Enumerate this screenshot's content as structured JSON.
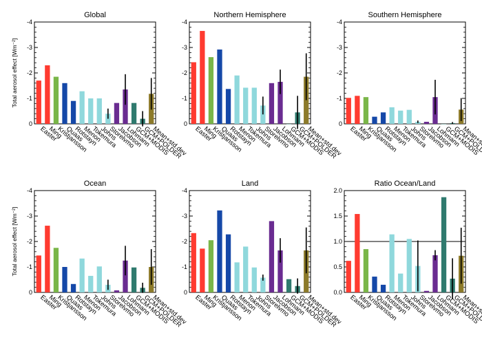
{
  "ylabel": "Total aerosol effect [Wm⁻²]",
  "colors": {
    "Easter": "#ff3b30",
    "Ming": "#ff3b30",
    "Kristjansson": "#7ab648",
    "Quaas": "#1548a8",
    "Rotstayn": "#1548a8",
    "Menon": "#8fd8dc",
    "Tokemura": "#8fd8dc",
    "Johns": "#8fd8dc",
    "Storelvmo": "#8fd8dc",
    "Jacobson": "#6a2c91",
    "Lohmann": "#6a2c91",
    "GCM+MODIS": "#2f7a6e",
    "GCM+POLDER": "#2f7a6e",
    "Mean+std.dev": "#8c7a2a",
    "errorbar": "#000000",
    "reference_line": "#000000"
  },
  "chart_data": [
    {
      "id": "global",
      "type": "bar",
      "title": "Global",
      "ylabel": "Total aerosol effect [Wm⁻²]",
      "ylim": [
        0,
        -4
      ],
      "yticks": [
        "0",
        "-1",
        "-2",
        "-3",
        "-4"
      ],
      "categories": [
        "Easter",
        "Ming",
        "Kristjansson",
        "Quaas",
        "Rotstayn",
        "Menon",
        "Tokemura",
        "Johns",
        "Storelvmo",
        "Jacobson",
        "Lohmann",
        "GCM+MODIS",
        "GCM+POLDER",
        "Mean+std.dev"
      ],
      "values": [
        -1.7,
        -2.3,
        -1.85,
        -1.6,
        -0.9,
        -1.28,
        -1.0,
        -1.0,
        -0.4,
        -0.82,
        -1.35,
        -0.82,
        -0.2,
        -1.18
      ],
      "errors": [
        null,
        null,
        null,
        null,
        null,
        null,
        null,
        null,
        0.2,
        null,
        0.6,
        null,
        0.3,
        0.62
      ]
    },
    {
      "id": "nh",
      "type": "bar",
      "title": "Northern Hemisphere",
      "ylim": [
        0,
        -4
      ],
      "yticks": [
        "0",
        "-1",
        "-2",
        "-3",
        "-4"
      ],
      "categories": [
        "Easter",
        "Ming",
        "Kristjansson",
        "Quaas",
        "Rotstayn",
        "Menon",
        "Tokemura",
        "Johns",
        "Storelvmo",
        "Jacobson",
        "Lohmann",
        "GCM+MODIS",
        "GCM+POLDER",
        "Mean+std.dev"
      ],
      "values": [
        -2.42,
        -3.65,
        -2.62,
        -2.92,
        -1.37,
        -1.9,
        -1.42,
        -1.42,
        -0.72,
        -1.6,
        -1.65,
        -0.0,
        -0.45,
        -1.85
      ],
      "errors": [
        null,
        null,
        null,
        null,
        null,
        null,
        null,
        null,
        0.35,
        null,
        0.48,
        null,
        0.65,
        0.92
      ]
    },
    {
      "id": "sh",
      "type": "bar",
      "title": "Southern Hemisphere",
      "ylim": [
        0,
        -4
      ],
      "yticks": [
        "0",
        "-1",
        "-2",
        "-3",
        "-4"
      ],
      "categories": [
        "Easter",
        "Ming",
        "Kristjansson",
        "Quaas",
        "Rotstayn",
        "Menon",
        "Tokemura",
        "Johns",
        "Storelvmo",
        "Jacobson",
        "Lohmann",
        "GCM+MODIS",
        "GCM+POLDER",
        "Mean+std.dev"
      ],
      "values": [
        -1.02,
        -1.1,
        -1.05,
        -0.28,
        -0.45,
        -0.65,
        -0.52,
        -0.55,
        -0.08,
        -0.08,
        -1.05,
        -0.0,
        -0.03,
        -0.56
      ],
      "errors": [
        null,
        null,
        null,
        null,
        null,
        null,
        null,
        null,
        0.05,
        null,
        0.68,
        null,
        0.04,
        0.45
      ]
    },
    {
      "id": "ocean",
      "type": "bar",
      "title": "Ocean",
      "ylabel": "Total aerosol effect [Wm⁻²]",
      "ylim": [
        0,
        -4
      ],
      "yticks": [
        "0",
        "-1",
        "-2",
        "-3",
        "-4"
      ],
      "categories": [
        "Easter",
        "Ming",
        "Kristjansson",
        "Quaas",
        "Rotstayn",
        "Menon",
        "Tokemura",
        "Johns",
        "Storelvmo",
        "Jacobson",
        "Lohmann",
        "GCM+MODIS",
        "GCM+POLDER",
        "Mean+std.dev"
      ],
      "values": [
        -1.45,
        -2.62,
        -1.75,
        -1.0,
        -0.33,
        -1.33,
        -0.65,
        -1.02,
        -0.3,
        -0.08,
        -1.25,
        -0.98,
        -0.18,
        -1.0
      ],
      "errors": [
        null,
        null,
        null,
        null,
        null,
        null,
        null,
        null,
        0.2,
        null,
        0.58,
        null,
        0.2,
        0.7
      ]
    },
    {
      "id": "land",
      "type": "bar",
      "title": "Land",
      "ylim": [
        0,
        -4
      ],
      "yticks": [
        "0",
        "-1",
        "-2",
        "-3",
        "-4"
      ],
      "categories": [
        "Easter",
        "Ming",
        "Kristjansson",
        "Quaas",
        "Rotstayn",
        "Menon",
        "Tokemura",
        "Johns",
        "Storelvmo",
        "Jacobson",
        "Lohmann",
        "GCM+MODIS",
        "GCM+POLDER",
        "Mean+std.dev"
      ],
      "values": [
        -2.33,
        -1.72,
        -2.05,
        -3.22,
        -2.28,
        -1.18,
        -1.8,
        -0.98,
        -0.58,
        -2.8,
        -1.65,
        -0.52,
        -0.25,
        -1.65
      ],
      "errors": [
        null,
        null,
        null,
        null,
        null,
        null,
        null,
        null,
        0.12,
        null,
        0.48,
        null,
        0.3,
        0.9
      ]
    },
    {
      "id": "ratio",
      "type": "bar",
      "title": "Ratio Ocean/Land",
      "ylim": [
        0,
        2
      ],
      "yticks": [
        "0.0",
        "0.5",
        "1.0",
        "1.5",
        "2.0"
      ],
      "reference_line": 1.0,
      "categories": [
        "Easter",
        "Ming",
        "Kristjansson",
        "Quaas",
        "Rotstayn",
        "Menon",
        "Tokemura",
        "Johns",
        "Storelvmo",
        "Jacobson",
        "Lohmann",
        "GCM+MODIS",
        "GCM+POLDER",
        "Mean+std.dev"
      ],
      "values": [
        0.62,
        1.54,
        0.85,
        0.31,
        0.15,
        1.14,
        0.37,
        1.05,
        0.52,
        0.03,
        0.73,
        1.87,
        0.27,
        0.72
      ],
      "errors": [
        null,
        null,
        null,
        null,
        null,
        null,
        null,
        null,
        0.5,
        null,
        0.1,
        null,
        0.4,
        0.55
      ]
    }
  ]
}
